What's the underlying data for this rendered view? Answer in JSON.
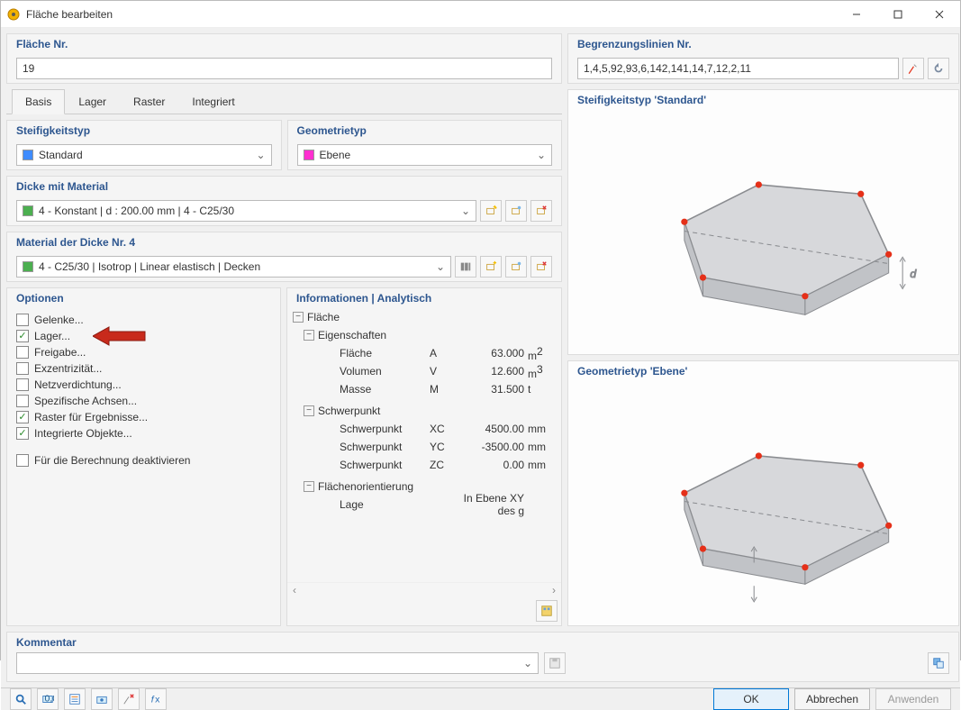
{
  "window": {
    "title": "Fläche bearbeiten"
  },
  "surface_nr": {
    "title": "Fläche Nr.",
    "value": "19"
  },
  "boundary": {
    "title": "Begrenzungslinien Nr.",
    "value": "1,4,5,92,93,6,142,141,14,7,12,2,11"
  },
  "tabs": [
    {
      "label": "Basis",
      "active": true
    },
    {
      "label": "Lager",
      "active": false
    },
    {
      "label": "Raster",
      "active": false
    },
    {
      "label": "Integriert",
      "active": false
    }
  ],
  "stiffness": {
    "title": "Steifigkeitstyp",
    "value": "Standard",
    "swatch": "#3f8cff"
  },
  "geometry": {
    "title": "Geometrietyp",
    "value": "Ebene",
    "swatch": "#ff2fd0"
  },
  "thickness": {
    "title": "Dicke mit Material",
    "value": "4 - Konstant | d : 200.00 mm | 4 - C25/30",
    "swatch": "#4caf50"
  },
  "material": {
    "title": "Material der Dicke Nr. 4",
    "value": "4 - C25/30 | Isotrop | Linear elastisch | Decken",
    "swatch": "#4caf50"
  },
  "options": {
    "title": "Optionen",
    "items": [
      {
        "label": "Gelenke...",
        "checked": false,
        "highlighted": false
      },
      {
        "label": "Lager...",
        "checked": true,
        "highlighted": true
      },
      {
        "label": "Freigabe...",
        "checked": false,
        "highlighted": false
      },
      {
        "label": "Exzentrizität...",
        "checked": false,
        "highlighted": false
      },
      {
        "label": "Netzverdichtung...",
        "checked": false,
        "highlighted": false
      },
      {
        "label": "Spezifische Achsen...",
        "checked": false,
        "highlighted": false
      },
      {
        "label": "Raster für Ergebnisse...",
        "checked": true,
        "highlighted": false
      },
      {
        "label": "Integrierte Objekte...",
        "checked": true,
        "highlighted": false
      }
    ],
    "deactivate": {
      "label": "Für die Berechnung deaktivieren",
      "checked": false
    }
  },
  "info": {
    "title": "Informationen | Analytisch",
    "root": "Fläche",
    "groups": [
      {
        "label": "Eigenschaften",
        "rows": [
          {
            "label": "Fläche",
            "sym": "A",
            "val": "63.000",
            "unit": "m",
            "sup": "2"
          },
          {
            "label": "Volumen",
            "sym": "V",
            "val": "12.600",
            "unit": "m",
            "sup": "3"
          },
          {
            "label": "Masse",
            "sym": "M",
            "val": "31.500",
            "unit": "t",
            "sup": ""
          }
        ]
      },
      {
        "label": "Schwerpunkt",
        "rows": [
          {
            "label": "Schwerpunkt",
            "sym": "XC",
            "val": "4500.00",
            "unit": "mm",
            "sup": ""
          },
          {
            "label": "Schwerpunkt",
            "sym": "YC",
            "val": "-3500.00",
            "unit": "mm",
            "sup": ""
          },
          {
            "label": "Schwerpunkt",
            "sym": "ZC",
            "val": "0.00",
            "unit": "mm",
            "sup": ""
          }
        ]
      },
      {
        "label": "Flächenorientierung",
        "rows": [
          {
            "label": "Lage",
            "sym": "",
            "val": "In Ebene XY des g",
            "unit": "",
            "sup": ""
          }
        ]
      }
    ]
  },
  "previews": [
    {
      "caption": "Steifigkeitstyp 'Standard'"
    },
    {
      "caption": "Geometrietyp 'Ebene'"
    }
  ],
  "comment": {
    "title": "Kommentar",
    "value": ""
  },
  "buttons": {
    "ok": "OK",
    "cancel": "Abbrechen",
    "apply": "Anwenden"
  },
  "colors": {
    "slab_fill": "#d7d8db",
    "slab_edge": "#8a8c90",
    "slab_side": "#c1c3c7",
    "node": "#e53019",
    "arrow": "#c82a1b"
  }
}
